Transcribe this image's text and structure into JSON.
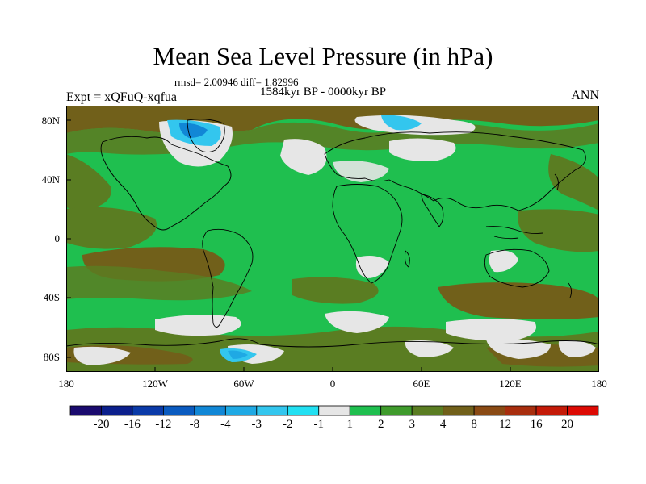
{
  "title": "Mean Sea Level Pressure (in hPa)",
  "stats": "rmsd= 2.00946 diff= 1.82996",
  "period": "1584kyr BP - 0000kyr BP",
  "experiment": "Expt = xQFuQ-xqfua",
  "season": "ANN",
  "lat_ticks": [
    "80N",
    "40N",
    "0",
    "40S",
    "80S"
  ],
  "lon_ticks": [
    "180",
    "120W",
    "60W",
    "0",
    "60E",
    "120E",
    "180"
  ],
  "colorbar": {
    "labels": [
      "-20",
      "-16",
      "-12",
      "-8",
      "-4",
      "-3",
      "-2",
      "-1",
      "1",
      "2",
      "3",
      "4",
      "8",
      "12",
      "16",
      "20"
    ],
    "colors": [
      "#1a0a6e",
      "#0b1f8c",
      "#0a3aa8",
      "#0a5bc0",
      "#1187d6",
      "#1fa9e4",
      "#33c6ee",
      "#22e0f2",
      "#e6e6e6",
      "#1fbf4f",
      "#3f9b2c",
      "#5a7d22",
      "#71601a",
      "#8a4a14",
      "#a82e0e",
      "#c41a08",
      "#dd0a04"
    ]
  },
  "map_palette": {
    "ocean": "#1fbf4f",
    "mid": "#3f9b2c",
    "olive": "#5a7d22",
    "brown": "#71601a",
    "neutral": "#e6e6e6",
    "cyan": "#33c6ee",
    "lightblue": "#1fa9e4",
    "blue": "#1187d6"
  }
}
